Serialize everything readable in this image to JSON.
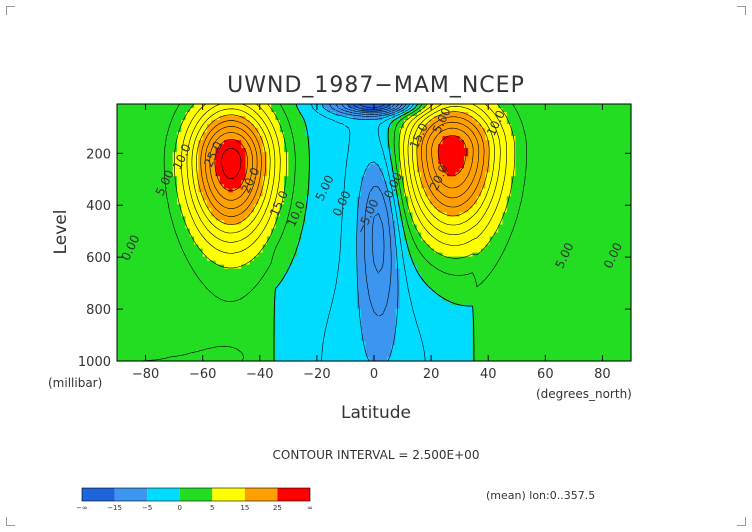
{
  "chart_data": {
    "type": "contour",
    "title": "UWND_1987−MAM_NCEP",
    "xlabel": "Latitude",
    "ylabel": "Level",
    "x_unit": "(degrees_north)",
    "y_unit": "(millibar)",
    "xlim": [
      -90,
      90
    ],
    "ylim": [
      1000,
      10
    ],
    "y_reversed": true,
    "x_ticks": [
      "−80",
      "−60",
      "−40",
      "−20",
      "0",
      "20",
      "40",
      "60",
      "80"
    ],
    "x_tick_values": [
      -80,
      -60,
      -40,
      -20,
      0,
      20,
      40,
      60,
      80
    ],
    "y_ticks": [
      "200",
      "400",
      "600",
      "800",
      "1000"
    ],
    "y_tick_values": [
      200,
      400,
      600,
      800,
      1000
    ],
    "contour_interval_text": "CONTOUR INTERVAL = 2.500E+00",
    "footnote": "(mean) lon:0..357.5",
    "contour_labels": [
      {
        "text": "10.0",
        "lat": -66,
        "lev": 220
      },
      {
        "text": "5.00",
        "lat": -72,
        "lev": 320
      },
      {
        "text": "0.00",
        "lat": -84,
        "lev": 570
      },
      {
        "text": "25.0",
        "lat": -55,
        "lev": 210
      },
      {
        "text": "20.0",
        "lat": -42,
        "lev": 310
      },
      {
        "text": "15.0",
        "lat": -32,
        "lev": 400
      },
      {
        "text": "10.0",
        "lat": -26,
        "lev": 440
      },
      {
        "text": "5.00",
        "lat": -16,
        "lev": 340
      },
      {
        "text": "0.00",
        "lat": -10,
        "lev": 400
      },
      {
        "text": "−5.00",
        "lat": -1,
        "lev": 450
      },
      {
        "text": "0.00",
        "lat": 8,
        "lev": 330
      },
      {
        "text": "15.0",
        "lat": 17,
        "lev": 140
      },
      {
        "text": "5.00",
        "lat": 25,
        "lev": 80
      },
      {
        "text": "10.0",
        "lat": 44,
        "lev": 90
      },
      {
        "text": "20.0",
        "lat": 24,
        "lev": 300
      },
      {
        "text": "5.00",
        "lat": 68,
        "lev": 600
      },
      {
        "text": "0.00",
        "lat": 85,
        "lev": 600
      }
    ],
    "fields": [
      {
        "name": "sh_jet",
        "lat": -50,
        "lev": 230,
        "amp": 29,
        "w": 15,
        "lev_low": 300,
        "lev_high": 220
      },
      {
        "name": "nh_jet",
        "lat": 27,
        "lev": 190,
        "amp": 28,
        "w": 17,
        "lev_low": 330,
        "lev_high": 200
      },
      {
        "name": "eq_easterly",
        "lat": 2,
        "lev": 480,
        "amp": -9,
        "w": 7,
        "lev_low": 380,
        "lev_high": 300
      },
      {
        "name": "strat_easterly",
        "lat": 0,
        "lev": 10,
        "amp": -20,
        "w": 14,
        "lev_low": 40,
        "lev_high": 40
      }
    ],
    "colorbar": {
      "labels": [
        "−∞",
        "−15",
        "−5",
        "0",
        "5",
        "15",
        "25",
        "∞"
      ],
      "bins": [
        {
          "min": "-inf",
          "max": -15,
          "color": "#1e64dc"
        },
        {
          "min": -15,
          "max": -5,
          "color": "#3c96f0"
        },
        {
          "min": -5,
          "max": 0,
          "color": "#00dcff"
        },
        {
          "min": 0,
          "max": 5,
          "color": "#22dd22"
        },
        {
          "min": 5,
          "max": 15,
          "color": "#ffff00"
        },
        {
          "min": 15,
          "max": 25,
          "color": "#ffa000"
        },
        {
          "min": 25,
          "max": "inf",
          "color": "#ff0000"
        }
      ],
      "level_colors": [
        {
          "upto": -15,
          "color": "#1e64dc"
        },
        {
          "upto": -5,
          "color": "#3c96f0"
        },
        {
          "upto": 0,
          "color": "#00dcff"
        },
        {
          "upto": 5,
          "color": "#22dd22"
        },
        {
          "upto": 15,
          "color": "#ffff00"
        },
        {
          "upto": 25,
          "color": "#ffa000"
        },
        {
          "upto": 1000,
          "color": "#ff0000"
        }
      ]
    }
  }
}
